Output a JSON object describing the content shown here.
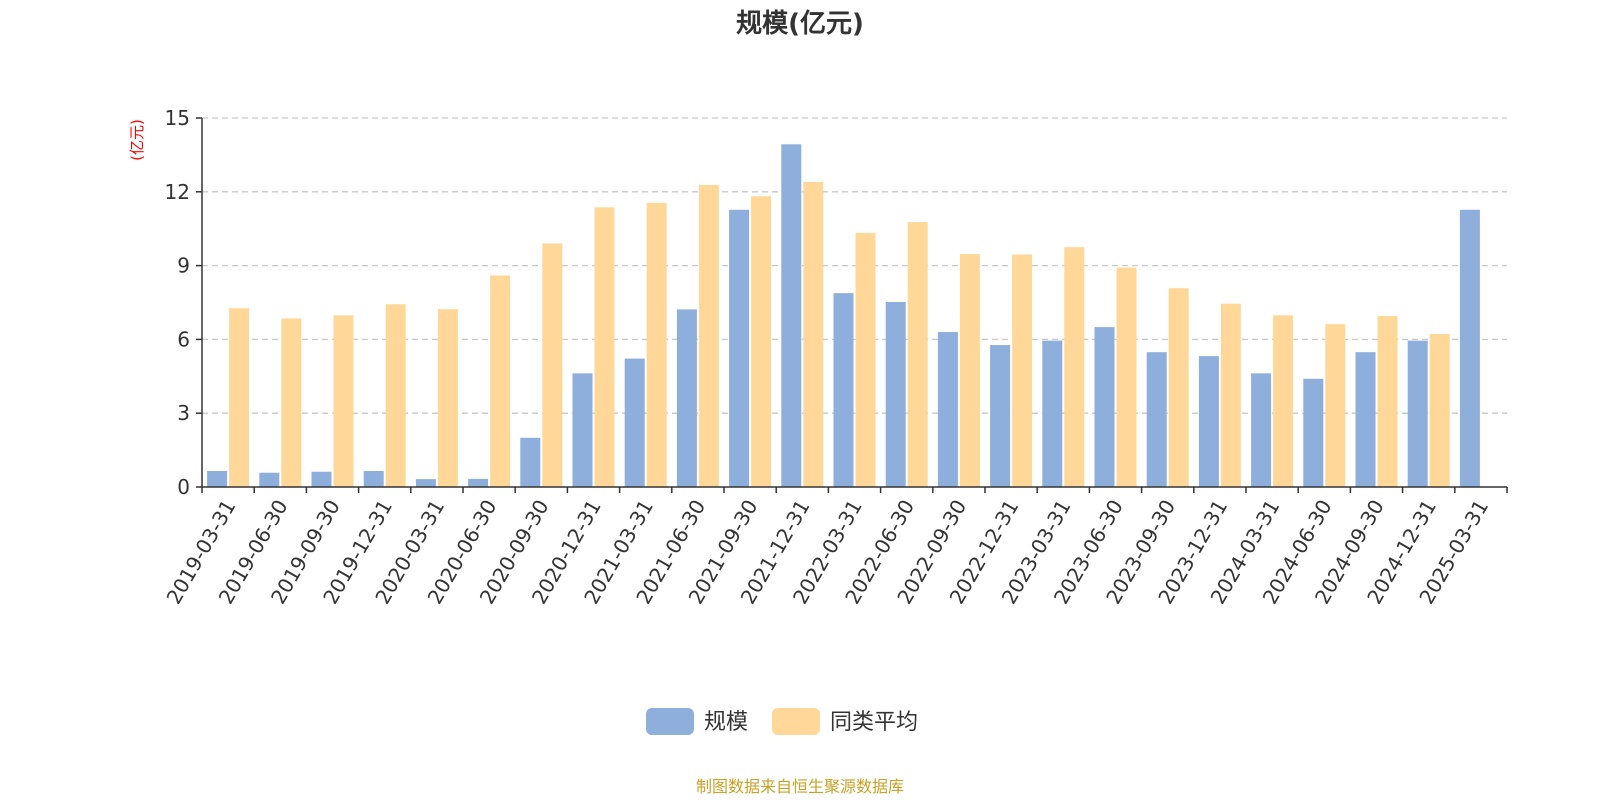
{
  "chart_data": {
    "type": "bar",
    "title": "规模(亿元)",
    "ylabel": "(亿元)",
    "ylim": [
      0,
      15
    ],
    "yticks": [
      0,
      3,
      6,
      9,
      12,
      15
    ],
    "grid": true,
    "legend_position": "bottom",
    "categories": [
      "2019-03-31",
      "2019-06-30",
      "2019-09-30",
      "2019-12-31",
      "2020-03-31",
      "2020-06-30",
      "2020-09-30",
      "2020-12-31",
      "2021-03-31",
      "2021-06-30",
      "2021-09-30",
      "2021-12-31",
      "2022-03-31",
      "2022-06-30",
      "2022-09-30",
      "2022-12-31",
      "2023-03-31",
      "2023-06-30",
      "2023-09-30",
      "2023-12-31",
      "2024-03-31",
      "2024-06-30",
      "2024-09-30",
      "2024-12-31",
      "2025-03-31"
    ],
    "series": [
      {
        "name": "规模",
        "color": "#8eaedc",
        "values": [
          0.65,
          0.58,
          0.62,
          0.65,
          0.32,
          0.33,
          2.0,
          4.62,
          5.22,
          7.22,
          11.27,
          13.93,
          7.88,
          7.52,
          6.3,
          5.77,
          5.95,
          6.5,
          5.48,
          5.32,
          4.62,
          4.4,
          5.48,
          5.95,
          11.27
        ]
      },
      {
        "name": "同类平均",
        "color": "#ffd899",
        "values": [
          7.27,
          6.85,
          6.98,
          7.43,
          7.23,
          8.6,
          9.9,
          11.37,
          11.55,
          12.28,
          11.82,
          12.4,
          10.33,
          10.77,
          9.47,
          9.45,
          9.75,
          8.92,
          8.08,
          7.45,
          6.98,
          6.62,
          6.95,
          6.22,
          null
        ]
      }
    ]
  },
  "source": "制图数据来自恒生聚源数据库",
  "colors": {
    "ylabel": "#ff0000",
    "source": "#c9a227",
    "grid": "#c8c8c8",
    "axis": "#333333"
  }
}
